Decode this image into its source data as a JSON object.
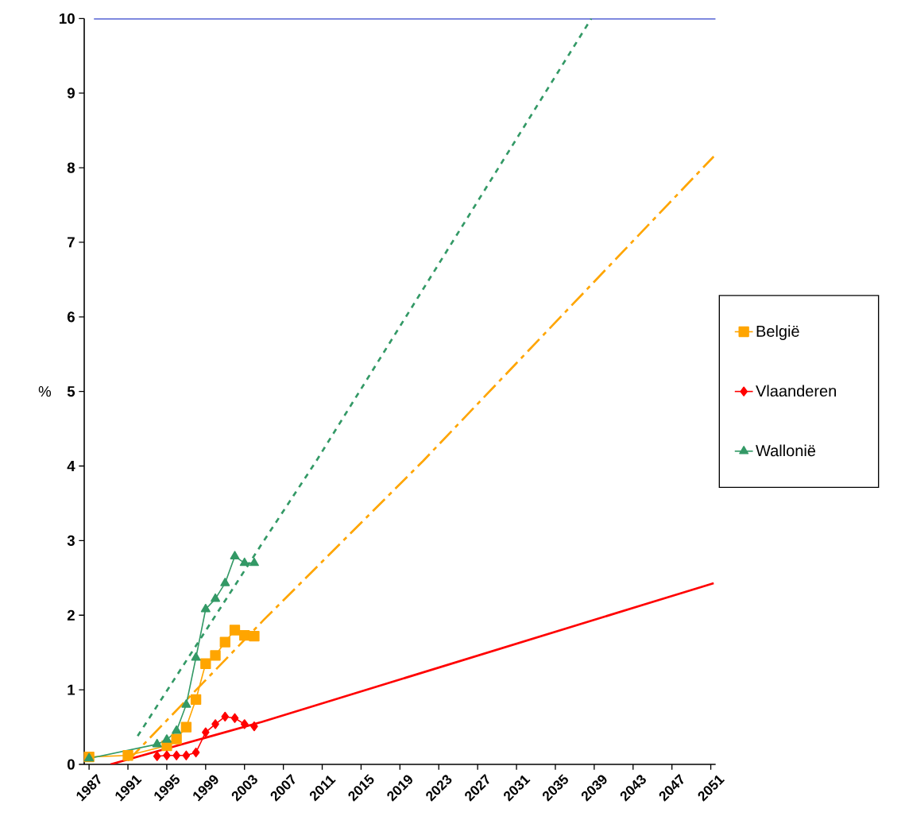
{
  "chart_data": {
    "type": "line",
    "ylabel": "%",
    "xlim": [
      1986.5,
      2051.5
    ],
    "ylim": [
      0,
      10
    ],
    "xticks": [
      1987,
      1991,
      1995,
      1999,
      2003,
      2007,
      2011,
      2015,
      2019,
      2023,
      2027,
      2031,
      2035,
      2039,
      2043,
      2047,
      2051
    ],
    "yticks": [
      0,
      1,
      2,
      3,
      4,
      5,
      6,
      7,
      8,
      9,
      10
    ],
    "grid": false,
    "legend": "right",
    "line_style": "solid",
    "ref_lines": [
      {
        "axis": "y",
        "value": 10,
        "color": "#3344cc"
      }
    ],
    "series": [
      {
        "name": "België",
        "color": "#ffa500",
        "marker": "square",
        "x": [
          1987,
          1991,
          1995,
          1996,
          1997,
          1998,
          1999,
          2000,
          2001,
          2002,
          2003,
          2004
        ],
        "values": [
          0.1,
          0.12,
          0.25,
          0.34,
          0.5,
          0.87,
          1.35,
          1.46,
          1.64,
          1.8,
          1.73,
          1.72
        ]
      },
      {
        "name": "Vlaanderen",
        "color": "#ff0000",
        "marker": "diamond",
        "x": [
          1994,
          1995,
          1996,
          1997,
          1998,
          1999,
          2000,
          2001,
          2002,
          2003,
          2004
        ],
        "values": [
          0.11,
          0.12,
          0.12,
          0.12,
          0.16,
          0.43,
          0.54,
          0.64,
          0.62,
          0.54,
          0.51
        ]
      },
      {
        "name": "Wallonië",
        "color": "#339966",
        "marker": "triangle",
        "x": [
          1987,
          1994,
          1995,
          1996,
          1997,
          1998,
          1999,
          2000,
          2001,
          2002,
          2003,
          2004
        ],
        "values": [
          0.08,
          0.27,
          0.33,
          0.45,
          0.8,
          1.43,
          2.08,
          2.22,
          2.43,
          2.79,
          2.7,
          2.7
        ]
      },
      {
        "type": "line",
        "color": "#ffa500",
        "marker": "none",
        "line_style": "dashed",
        "x": [
          1991,
          2005,
          2021.4,
          2051.3
        ],
        "values": [
          0.05,
          1.94,
          4.07,
          8.15
        ]
      },
      {
        "type": "line",
        "color": "#ff0000",
        "marker": "none",
        "line_style": "solid",
        "x": [
          1989.2,
          2004.8,
          2051.3
        ],
        "values": [
          0,
          0.57,
          2.43
        ]
      },
      {
        "type": "line",
        "color": "#339966",
        "marker": "none",
        "line_style": "dotted",
        "x": [
          1992,
          2004.8,
          2010.4,
          2038.7
        ],
        "values": [
          0.38,
          2.96,
          4.07,
          10
        ]
      }
    ]
  }
}
